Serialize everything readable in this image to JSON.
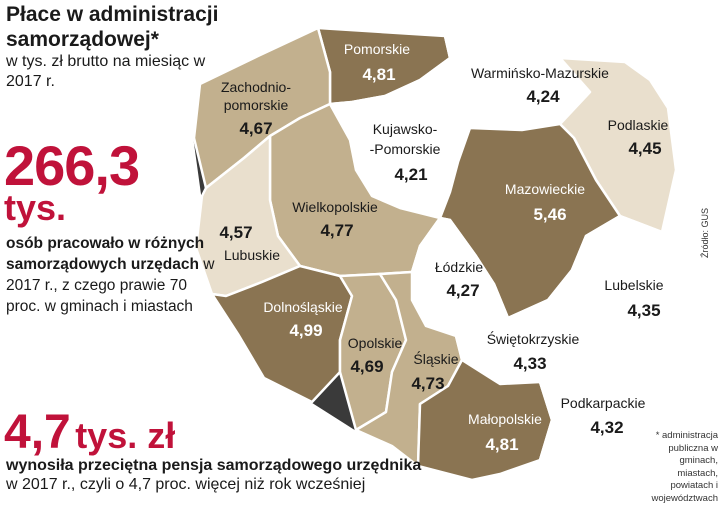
{
  "header": {
    "title": "Płace w administracji samorządowej*",
    "subtitle": "w tys. zł brutto na miesiąc w 2017 r."
  },
  "stat_employees": {
    "value": "266,3",
    "unit": "tys.",
    "text_bold": "osób pracowało w różnych samorządowych urzędach",
    "text_rest": " w 2017 r., z czego prawie 70 proc. w gminach i miastach"
  },
  "stat_salary": {
    "value": "4,7",
    "unit": "tys. zł",
    "text_bold": "wynosiła przeciętna pensja samorządowego urzędnika",
    "text_rest": "w 2017 r., czyli o 4,7 proc. więcej niż rok wcześniej"
  },
  "source": "Źródło: GUS",
  "footnote": "* administracja publiczna w gminach, miastach, powiatach i województwach",
  "colors": {
    "dark": "#8a7452",
    "medium": "#c2b08e",
    "light": "#e9dfcd",
    "white": "#ffffff",
    "accent_red": "#c0123a"
  },
  "regions": [
    {
      "name": "Pomorskie",
      "value": "4,81",
      "shade": "dark"
    },
    {
      "name": "Warmińsko-Mazurskie",
      "value": "4,24",
      "shade": "white"
    },
    {
      "name": "Zachodnio-pomorskie",
      "value": "4,67",
      "shade": "medium"
    },
    {
      "name": "Kujawsko--Pomorskie",
      "value": "4,21",
      "shade": "white"
    },
    {
      "name": "Podlaskie",
      "value": "4,45",
      "shade": "light"
    },
    {
      "name": "Mazowieckie",
      "value": "5,46",
      "shade": "dark"
    },
    {
      "name": "Wielkopolskie",
      "value": "4,77",
      "shade": "medium"
    },
    {
      "name": "Lubuskie",
      "value": "4,57",
      "shade": "light"
    },
    {
      "name": "Łódzkie",
      "value": "4,27",
      "shade": "white"
    },
    {
      "name": "Lubelskie",
      "value": "4,35",
      "shade": "white"
    },
    {
      "name": "Dolnośląskie",
      "value": "4,99",
      "shade": "dark"
    },
    {
      "name": "Opolskie",
      "value": "4,69",
      "shade": "medium"
    },
    {
      "name": "Śląskie",
      "value": "4,73",
      "shade": "medium"
    },
    {
      "name": "Świętokrzyskie",
      "value": "4,33",
      "shade": "white"
    },
    {
      "name": "Małopolskie",
      "value": "4,81",
      "shade": "dark"
    },
    {
      "name": "Podkarpackie",
      "value": "4,32",
      "shade": "white"
    }
  ]
}
